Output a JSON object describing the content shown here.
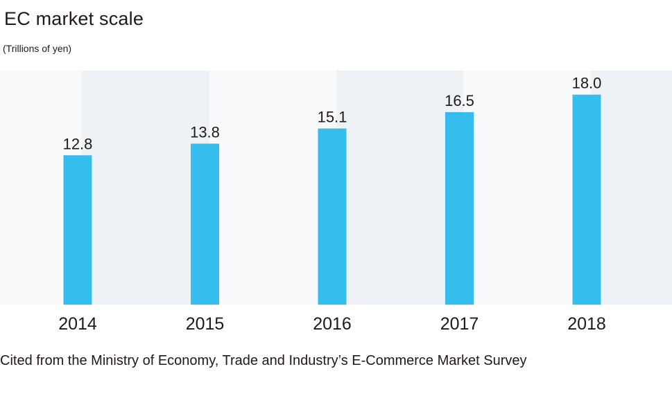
{
  "title": "EC market scale",
  "unit_label": "(Trillions of yen)",
  "source_note": "Cited from the Ministry of Economy, Trade and Industry’s E-Commerce Market Survey",
  "colors": {
    "bar": "#35bdee",
    "band_light": "#f7f9fb",
    "band_dark": "#edf2f6",
    "text": "#231815"
  },
  "chart_data": {
    "type": "bar",
    "categories": [
      "2014",
      "2015",
      "2016",
      "2017",
      "2018"
    ],
    "values": [
      12.8,
      13.8,
      15.1,
      16.5,
      18.0
    ],
    "value_labels": [
      "12.8",
      "13.8",
      "15.1",
      "16.5",
      "18.0"
    ],
    "title": "EC market scale",
    "ylabel": "(Trillions of yen)",
    "xlabel": "",
    "grid": false,
    "legend": "none"
  }
}
